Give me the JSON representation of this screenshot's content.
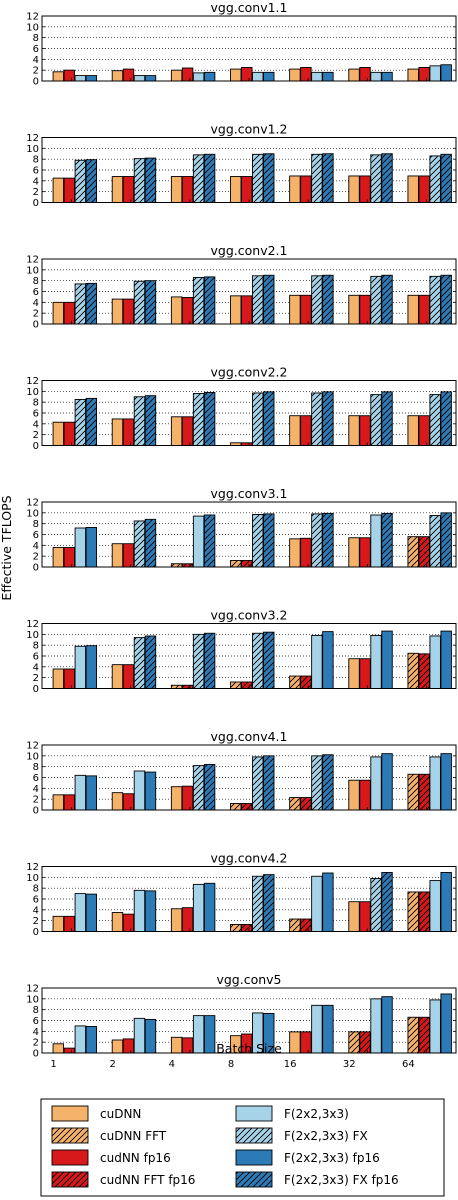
{
  "figure": {
    "ylabel": "Effective TFLOPS",
    "xlabel": "Batch Size"
  },
  "legend": [
    {
      "name": "cuDNN",
      "color": "#f5b26b",
      "hatch": false
    },
    {
      "name": "cuDNN FFT",
      "color": "#f5b26b",
      "hatch": true
    },
    {
      "name": "cudNN fp16",
      "color": "#d7191c",
      "hatch": false
    },
    {
      "name": "cudNN FFT fp16",
      "color": "#d7191c",
      "hatch": true
    },
    {
      "name": "F(2x2,3x3)",
      "color": "#a6d3e8",
      "hatch": false
    },
    {
      "name": "F(2x2,3x3) FX",
      "color": "#a6d3e8",
      "hatch": true
    },
    {
      "name": "F(2x2,3x3) fp16",
      "color": "#2c7bb6",
      "hatch": false
    },
    {
      "name": "F(2x2,3x3) FX fp16",
      "color": "#2c7bb6",
      "hatch": true
    }
  ],
  "chart_data": [
    {
      "type": "bar",
      "title": "vgg.conv1.1",
      "categories": [
        "1",
        "2",
        "4",
        "8",
        "16",
        "32",
        "64"
      ],
      "yticks": [
        0,
        2,
        4,
        6,
        8,
        10,
        12
      ],
      "ylim": [
        0,
        12
      ],
      "series": [
        {
          "name": "cuDNN",
          "values": [
            1.7,
            1.9,
            2.0,
            2.2,
            2.2,
            2.2,
            2.2
          ]
        },
        {
          "name": "cudNN fp16",
          "values": [
            2.0,
            2.2,
            2.4,
            2.5,
            2.5,
            2.5,
            2.5
          ]
        },
        {
          "name": "F(2x2,3x3)",
          "values": [
            1.0,
            1.0,
            1.5,
            1.6,
            1.6,
            1.6,
            2.8
          ]
        },
        {
          "name": "F(2x2,3x3) fp16",
          "values": [
            1.0,
            1.0,
            1.6,
            1.6,
            1.6,
            1.6,
            3.0
          ]
        }
      ],
      "hatched": [
        [
          false,
          false,
          false,
          false
        ],
        [
          false,
          false,
          false,
          false
        ],
        [
          false,
          false,
          false,
          false
        ],
        [
          false,
          false,
          false,
          false
        ],
        [
          false,
          false,
          false,
          false
        ],
        [
          false,
          false,
          false,
          false
        ],
        [
          false,
          false,
          false,
          false
        ]
      ]
    },
    {
      "type": "bar",
      "title": "vgg.conv1.2",
      "categories": [
        "1",
        "2",
        "4",
        "8",
        "16",
        "32",
        "64"
      ],
      "yticks": [
        0,
        2,
        4,
        6,
        8,
        10,
        12
      ],
      "ylim": [
        0,
        12
      ],
      "series": [
        {
          "name": "cuDNN",
          "values": [
            4.5,
            4.8,
            4.8,
            4.8,
            4.9,
            4.9,
            4.9
          ]
        },
        {
          "name": "cudNN fp16",
          "values": [
            4.5,
            4.8,
            4.8,
            4.8,
            4.9,
            4.9,
            4.9
          ]
        },
        {
          "name": "F(2x2,3x3) FX",
          "values": [
            7.8,
            8.1,
            8.8,
            8.9,
            8.9,
            8.8,
            8.6
          ]
        },
        {
          "name": "F(2x2,3x3) FX fp16",
          "values": [
            7.9,
            8.2,
            8.9,
            9.0,
            9.0,
            9.0,
            8.9
          ]
        }
      ],
      "hatched": [
        [
          false,
          false,
          true,
          true
        ],
        [
          false,
          false,
          true,
          true
        ],
        [
          false,
          false,
          true,
          true
        ],
        [
          false,
          false,
          true,
          true
        ],
        [
          false,
          false,
          true,
          true
        ],
        [
          false,
          false,
          true,
          true
        ],
        [
          false,
          false,
          true,
          true
        ]
      ]
    },
    {
      "type": "bar",
      "title": "vgg.conv2.1",
      "categories": [
        "1",
        "2",
        "4",
        "8",
        "16",
        "32",
        "64"
      ],
      "yticks": [
        0,
        2,
        4,
        6,
        8,
        10,
        12
      ],
      "ylim": [
        0,
        12
      ],
      "series": [
        {
          "name": "cuDNN",
          "values": [
            4.0,
            4.6,
            5.0,
            5.2,
            5.3,
            5.3,
            5.3
          ]
        },
        {
          "name": "cudNN fp16",
          "values": [
            4.0,
            4.6,
            4.9,
            5.2,
            5.3,
            5.3,
            5.3
          ]
        },
        {
          "name": "F(2x2,3x3) FX",
          "values": [
            7.4,
            7.9,
            8.6,
            8.9,
            8.9,
            8.8,
            8.8
          ]
        },
        {
          "name": "F(2x2,3x3) FX fp16",
          "values": [
            7.5,
            8.0,
            8.7,
            9.0,
            9.0,
            9.0,
            9.0
          ]
        }
      ],
      "hatched": [
        [
          false,
          false,
          true,
          true
        ],
        [
          false,
          false,
          true,
          true
        ],
        [
          false,
          false,
          true,
          true
        ],
        [
          false,
          false,
          true,
          true
        ],
        [
          false,
          false,
          true,
          true
        ],
        [
          false,
          false,
          true,
          true
        ],
        [
          false,
          false,
          true,
          true
        ]
      ]
    },
    {
      "type": "bar",
      "title": "vgg.conv2.2",
      "categories": [
        "1",
        "2",
        "4",
        "8",
        "16",
        "32",
        "64"
      ],
      "yticks": [
        0,
        2,
        4,
        6,
        8,
        10,
        12
      ],
      "ylim": [
        0,
        12
      ],
      "series": [
        {
          "name": "cuDNN",
          "values": [
            4.3,
            4.9,
            5.3,
            0.5,
            5.5,
            5.5,
            5.5
          ]
        },
        {
          "name": "cudNN fp16",
          "values": [
            4.3,
            4.9,
            5.3,
            0.5,
            5.5,
            5.5,
            5.5
          ]
        },
        {
          "name": "F(2x2,3x3) FX",
          "values": [
            8.5,
            9.0,
            9.6,
            9.7,
            9.7,
            9.4,
            9.4
          ]
        },
        {
          "name": "F(2x2,3x3) FX fp16",
          "values": [
            8.7,
            9.2,
            9.8,
            9.9,
            9.9,
            9.9,
            9.9
          ]
        }
      ],
      "hatched": [
        [
          false,
          false,
          true,
          true
        ],
        [
          false,
          false,
          true,
          true
        ],
        [
          false,
          false,
          true,
          true
        ],
        [
          false,
          false,
          true,
          true
        ],
        [
          false,
          false,
          true,
          true
        ],
        [
          false,
          false,
          true,
          true
        ],
        [
          false,
          false,
          true,
          true
        ]
      ]
    },
    {
      "type": "bar",
      "title": "vgg.conv3.1",
      "categories": [
        "1",
        "2",
        "4",
        "8",
        "16",
        "32",
        "64"
      ],
      "yticks": [
        0,
        2,
        4,
        6,
        8,
        10,
        12
      ],
      "ylim": [
        0,
        12
      ],
      "series": [
        {
          "name": "cuDNN",
          "values": [
            3.6,
            4.3,
            0.6,
            1.2,
            5.2,
            5.4,
            5.6
          ]
        },
        {
          "name": "cudNN fp16",
          "values": [
            3.6,
            4.3,
            0.6,
            1.2,
            5.3,
            5.4,
            5.6
          ]
        },
        {
          "name": "F(2x2,3x3)",
          "values": [
            7.2,
            8.5,
            9.4,
            9.7,
            9.8,
            9.6,
            9.5
          ]
        },
        {
          "name": "F(2x2,3x3) fp16",
          "values": [
            7.3,
            8.8,
            9.6,
            9.8,
            9.9,
            9.9,
            10.0
          ]
        }
      ],
      "hatched": [
        [
          false,
          false,
          false,
          false
        ],
        [
          false,
          false,
          true,
          true
        ],
        [
          true,
          true,
          false,
          true
        ],
        [
          true,
          true,
          true,
          true
        ],
        [
          false,
          false,
          true,
          true
        ],
        [
          false,
          false,
          false,
          true
        ],
        [
          true,
          true,
          true,
          true
        ]
      ]
    },
    {
      "type": "bar",
      "title": "vgg.conv3.2",
      "categories": [
        "1",
        "2",
        "4",
        "8",
        "16",
        "32",
        "64"
      ],
      "yticks": [
        0,
        2,
        4,
        6,
        8,
        10,
        12
      ],
      "ylim": [
        0,
        12
      ],
      "series": [
        {
          "name": "cuDNN",
          "values": [
            3.6,
            4.4,
            0.6,
            1.2,
            2.3,
            5.5,
            6.5
          ]
        },
        {
          "name": "cudNN fp16",
          "values": [
            3.6,
            4.4,
            0.6,
            1.2,
            2.3,
            5.5,
            6.4
          ]
        },
        {
          "name": "F(2x2,3x3)",
          "values": [
            7.8,
            9.4,
            10.0,
            10.2,
            9.8,
            9.8,
            9.7
          ]
        },
        {
          "name": "F(2x2,3x3) fp16",
          "values": [
            7.9,
            9.7,
            10.2,
            10.4,
            10.5,
            10.6,
            10.6
          ]
        }
      ],
      "hatched": [
        [
          false,
          false,
          false,
          false
        ],
        [
          false,
          false,
          true,
          true
        ],
        [
          true,
          true,
          true,
          true
        ],
        [
          true,
          true,
          true,
          true
        ],
        [
          true,
          true,
          false,
          false
        ],
        [
          false,
          false,
          false,
          false
        ],
        [
          true,
          true,
          false,
          false
        ]
      ]
    },
    {
      "type": "bar",
      "title": "vgg.conv4.1",
      "categories": [
        "1",
        "2",
        "4",
        "8",
        "16",
        "32",
        "64"
      ],
      "yticks": [
        0,
        2,
        4,
        6,
        8,
        10,
        12
      ],
      "ylim": [
        0,
        12
      ],
      "series": [
        {
          "name": "cuDNN",
          "values": [
            2.8,
            3.2,
            4.3,
            1.2,
            2.3,
            5.5,
            6.6
          ]
        },
        {
          "name": "cudNN fp16",
          "values": [
            2.8,
            3.0,
            4.4,
            1.2,
            2.3,
            5.5,
            6.6
          ]
        },
        {
          "name": "F(2x2,3x3)",
          "values": [
            6.4,
            7.2,
            8.2,
            9.8,
            10.0,
            9.8,
            9.8
          ]
        },
        {
          "name": "F(2x2,3x3) fp16",
          "values": [
            6.3,
            7.0,
            8.4,
            10.0,
            10.2,
            10.4,
            10.4
          ]
        }
      ],
      "hatched": [
        [
          false,
          false,
          false,
          false
        ],
        [
          false,
          false,
          false,
          false
        ],
        [
          false,
          false,
          true,
          true
        ],
        [
          true,
          true,
          true,
          true
        ],
        [
          true,
          true,
          true,
          true
        ],
        [
          false,
          false,
          false,
          false
        ],
        [
          true,
          true,
          false,
          false
        ]
      ]
    },
    {
      "type": "bar",
      "title": "vgg.conv4.2",
      "categories": [
        "1",
        "2",
        "4",
        "8",
        "16",
        "32",
        "64"
      ],
      "yticks": [
        0,
        2,
        4,
        6,
        8,
        10,
        12
      ],
      "ylim": [
        0,
        12
      ],
      "series": [
        {
          "name": "cuDNN",
          "values": [
            2.8,
            3.5,
            4.2,
            1.3,
            2.3,
            5.5,
            7.3
          ]
        },
        {
          "name": "cudNN fp16",
          "values": [
            2.8,
            3.2,
            4.4,
            1.3,
            2.3,
            5.5,
            7.3
          ]
        },
        {
          "name": "F(2x2,3x3)",
          "values": [
            7.0,
            7.6,
            8.7,
            10.2,
            10.2,
            9.8,
            9.4
          ]
        },
        {
          "name": "F(2x2,3x3) fp16",
          "values": [
            6.9,
            7.5,
            8.9,
            10.5,
            10.8,
            10.9,
            10.9
          ]
        }
      ],
      "hatched": [
        [
          false,
          false,
          false,
          false
        ],
        [
          false,
          false,
          false,
          false
        ],
        [
          false,
          false,
          false,
          false
        ],
        [
          true,
          true,
          true,
          true
        ],
        [
          true,
          true,
          false,
          false
        ],
        [
          false,
          false,
          true,
          true
        ],
        [
          true,
          true,
          false,
          false
        ]
      ]
    },
    {
      "type": "bar",
      "title": "vgg.conv5",
      "categories": [
        "1",
        "2",
        "4",
        "8",
        "16",
        "32",
        "64"
      ],
      "yticks": [
        0,
        2,
        4,
        6,
        8,
        10,
        12
      ],
      "ylim": [
        0,
        12
      ],
      "series": [
        {
          "name": "cuDNN",
          "values": [
            1.7,
            2.4,
            2.9,
            3.2,
            3.9,
            3.9,
            6.6
          ]
        },
        {
          "name": "cudNN fp16",
          "values": [
            0.9,
            2.6,
            2.8,
            3.5,
            3.9,
            3.9,
            6.6
          ]
        },
        {
          "name": "F(2x2,3x3)",
          "values": [
            5.0,
            6.4,
            6.9,
            7.4,
            8.8,
            10.0,
            9.8
          ]
        },
        {
          "name": "F(2x2,3x3) fp16",
          "values": [
            4.9,
            6.2,
            6.9,
            7.3,
            8.8,
            10.4,
            10.9
          ]
        }
      ],
      "hatched": [
        [
          false,
          false,
          false,
          false
        ],
        [
          false,
          false,
          false,
          false
        ],
        [
          false,
          false,
          false,
          false
        ],
        [
          false,
          false,
          false,
          false
        ],
        [
          false,
          false,
          false,
          false
        ],
        [
          true,
          true,
          false,
          false
        ],
        [
          true,
          true,
          false,
          false
        ]
      ]
    }
  ]
}
